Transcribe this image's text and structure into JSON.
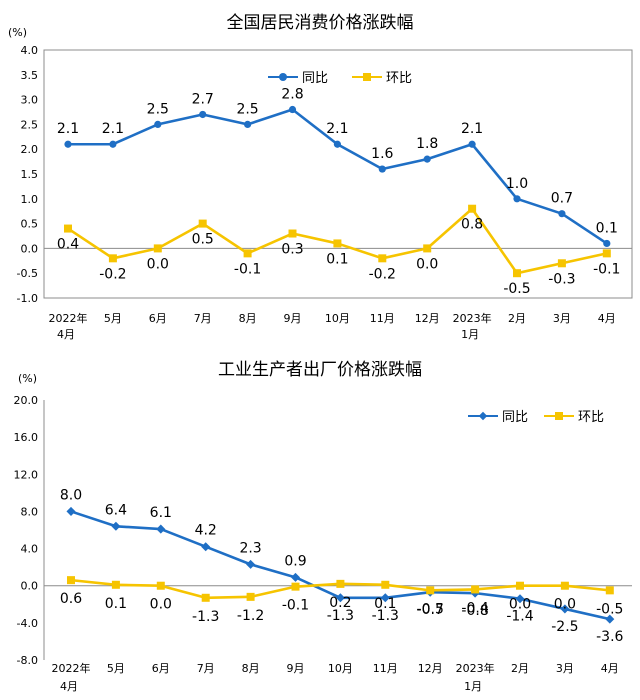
{
  "chart_data": [
    {
      "type": "line",
      "title": "全国居民消费价格涨跌幅",
      "unit_label": "(%)",
      "categories": [
        "2022年\n4月",
        "5月",
        "6月",
        "7月",
        "8月",
        "9月",
        "10月",
        "11月",
        "12月",
        "2023年\n1月",
        "2月",
        "3月",
        "4月"
      ],
      "ylim": [
        -1.0,
        4.0
      ],
      "yticks": [
        "4.0",
        "3.5",
        "3.0",
        "2.5",
        "2.0",
        "1.5",
        "1.0",
        "0.5",
        "0.0",
        "-0.5",
        "-1.0"
      ],
      "ytick_values": [
        4.0,
        3.5,
        3.0,
        2.5,
        2.0,
        1.5,
        1.0,
        0.5,
        0.0,
        -0.5,
        -1.0
      ],
      "legend_position": "top",
      "grid": false,
      "series": [
        {
          "name": "同比",
          "color": "#1F6FC5",
          "marker": "circle",
          "values": [
            2.1,
            2.1,
            2.5,
            2.7,
            2.5,
            2.8,
            2.1,
            1.6,
            1.8,
            2.1,
            1.0,
            0.7,
            0.1
          ],
          "labels": [
            "2.1",
            "2.1",
            "2.5",
            "2.7",
            "2.5",
            "2.8",
            "2.1",
            "1.6",
            "1.8",
            "2.1",
            "1.0",
            "0.7",
            "0.1"
          ]
        },
        {
          "name": "环比",
          "color": "#F6C400",
          "marker": "square",
          "values": [
            0.4,
            -0.2,
            0.0,
            0.5,
            -0.1,
            0.3,
            0.1,
            -0.2,
            0.0,
            0.8,
            -0.5,
            -0.3,
            -0.1
          ],
          "labels": [
            "0.4",
            "-0.2",
            "0.0",
            "0.5",
            "-0.1",
            "0.3",
            "0.1",
            "-0.2",
            "0.0",
            "0.8",
            "-0.5",
            "-0.3",
            "-0.1"
          ]
        }
      ]
    },
    {
      "type": "line",
      "title": "工业生产者出厂价格涨跌幅",
      "unit_label": "(%)",
      "categories": [
        "2022年\n4月",
        "5月",
        "6月",
        "7月",
        "8月",
        "9月",
        "10月",
        "11月",
        "12月",
        "2023年\n1月",
        "2月",
        "3月",
        "4月"
      ],
      "ylim": [
        -8.0,
        20.0
      ],
      "yticks": [
        "20.0",
        "16.0",
        "12.0",
        "8.0",
        "4.0",
        "0.0",
        "-4.0",
        "-8.0"
      ],
      "ytick_values": [
        20.0,
        16.0,
        12.0,
        8.0,
        4.0,
        0.0,
        -4.0,
        -8.0
      ],
      "legend_position": "top-right",
      "grid": false,
      "series": [
        {
          "name": "同比",
          "color": "#1F6FC5",
          "marker": "diamond",
          "values": [
            8.0,
            6.4,
            6.1,
            4.2,
            2.3,
            0.9,
            -1.3,
            -1.3,
            -0.7,
            -0.8,
            -1.4,
            -2.5,
            -3.6
          ],
          "labels": [
            "8.0",
            "6.4",
            "6.1",
            "4.2",
            "2.3",
            "0.9",
            "-1.3",
            "-1.3",
            "-0.7",
            "-0.8",
            "-1.4",
            "-2.5",
            "-3.6"
          ]
        },
        {
          "name": "环比",
          "color": "#F6C400",
          "marker": "square",
          "values": [
            0.6,
            0.1,
            0.0,
            -1.3,
            -1.2,
            -0.1,
            0.2,
            0.1,
            -0.5,
            -0.4,
            0.0,
            0.0,
            -0.5
          ],
          "labels": [
            "0.6",
            "0.1",
            "0.0",
            "-1.3",
            "-1.2",
            "-0.1",
            "0.2",
            "0.1",
            "-0.5",
            "-0.4",
            "0.0",
            "0.0",
            "-0.5"
          ]
        }
      ]
    }
  ]
}
